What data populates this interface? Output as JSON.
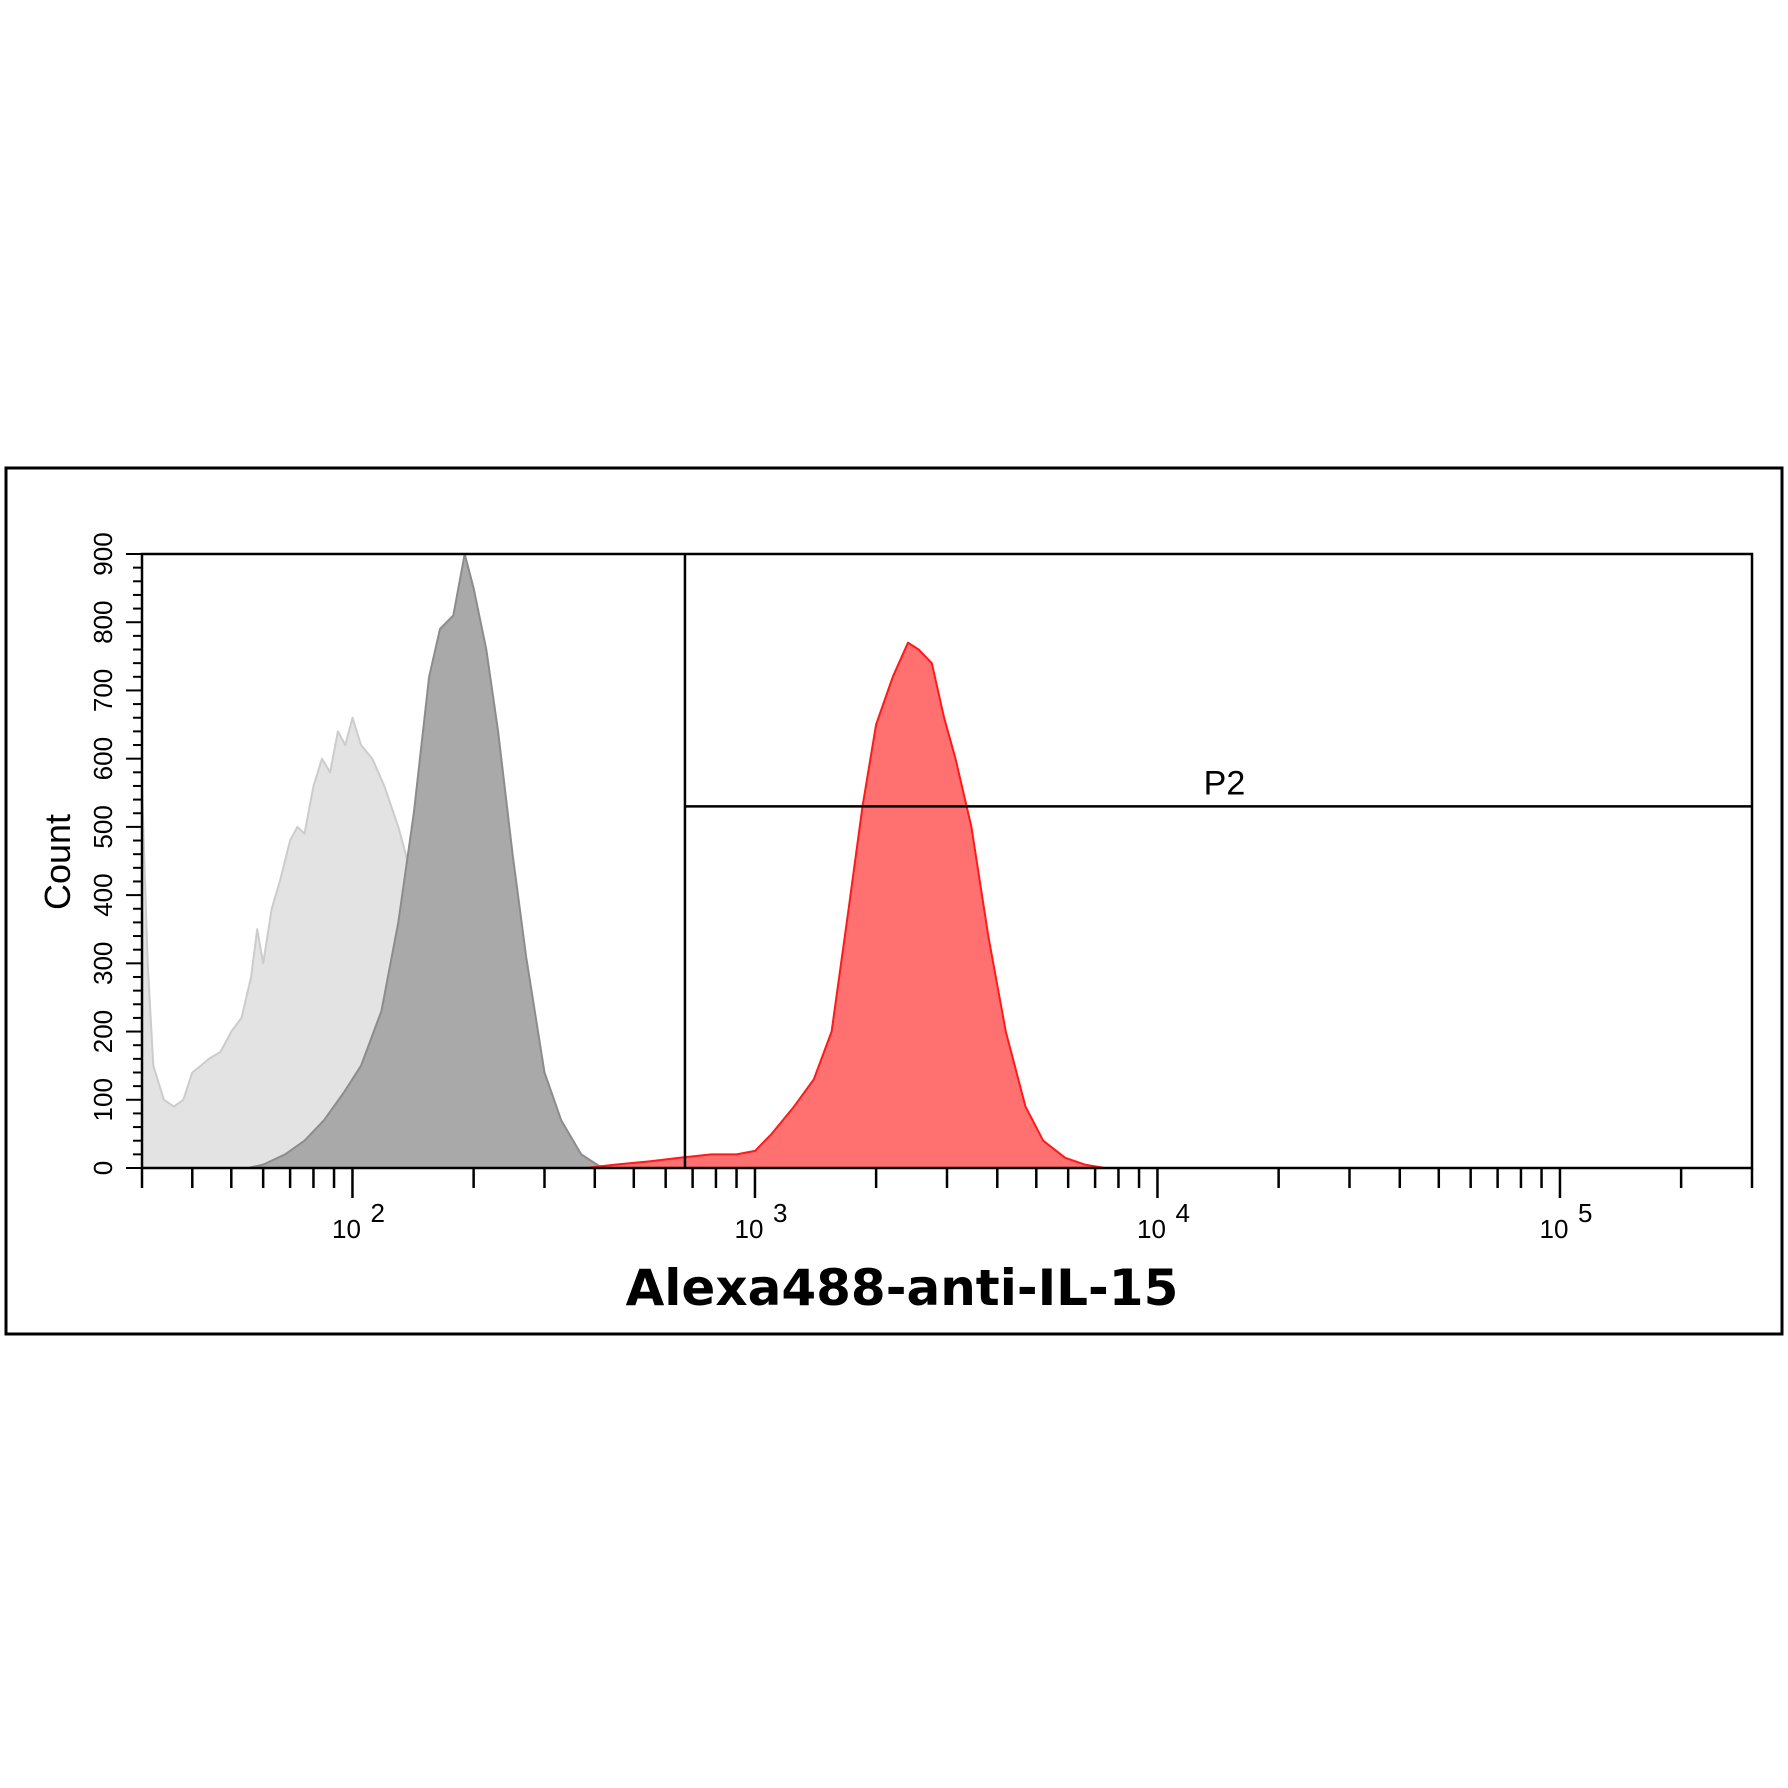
{
  "chart_data": {
    "type": "area",
    "x_scale": "log",
    "xlim": [
      30,
      300000
    ],
    "ylim": [
      0,
      900
    ],
    "xlabel": "Alexa488-anti-IL-15",
    "ylabel": "Count",
    "x_major_ticks": [
      {
        "value": 100,
        "base": "10",
        "exp": "2"
      },
      {
        "value": 1000,
        "base": "10",
        "exp": "3"
      },
      {
        "value": 10000,
        "base": "10",
        "exp": "4"
      },
      {
        "value": 100000,
        "base": "10",
        "exp": "5"
      }
    ],
    "y_ticks": [
      {
        "value": 0,
        "label": "0"
      },
      {
        "value": 100,
        "label": "100"
      },
      {
        "value": 200,
        "label": "200"
      },
      {
        "value": 300,
        "label": "300"
      },
      {
        "value": 400,
        "label": "400"
      },
      {
        "value": 500,
        "label": "500"
      },
      {
        "value": 600,
        "label": "600"
      },
      {
        "value": 700,
        "label": "700"
      },
      {
        "value": 800,
        "label": "800"
      },
      {
        "value": 900,
        "label": "900"
      }
    ],
    "gate": {
      "name": "P2",
      "x_start": 670,
      "x_end": 300000,
      "y": 530
    },
    "series": [
      {
        "color": "#e3e3e3",
        "stroke": "#cccccc",
        "points": [
          [
            30,
            560
          ],
          [
            31,
            300
          ],
          [
            32,
            150
          ],
          [
            34,
            100
          ],
          [
            36,
            90
          ],
          [
            38,
            100
          ],
          [
            40,
            140
          ],
          [
            42,
            150
          ],
          [
            44,
            160
          ],
          [
            47,
            170
          ],
          [
            50,
            200
          ],
          [
            53,
            220
          ],
          [
            56,
            280
          ],
          [
            58,
            350
          ],
          [
            60,
            300
          ],
          [
            63,
            380
          ],
          [
            66,
            420
          ],
          [
            70,
            480
          ],
          [
            73,
            500
          ],
          [
            76,
            490
          ],
          [
            80,
            560
          ],
          [
            84,
            600
          ],
          [
            88,
            580
          ],
          [
            92,
            640
          ],
          [
            96,
            620
          ],
          [
            100,
            660
          ],
          [
            105,
            620
          ],
          [
            112,
            600
          ],
          [
            120,
            560
          ],
          [
            130,
            500
          ],
          [
            140,
            430
          ],
          [
            155,
            330
          ],
          [
            170,
            230
          ],
          [
            190,
            140
          ],
          [
            210,
            80
          ],
          [
            240,
            40
          ],
          [
            270,
            20
          ],
          [
            310,
            8
          ],
          [
            360,
            2
          ],
          [
            420,
            0
          ]
        ]
      },
      {
        "color": "#a9a9a9",
        "stroke": "#8c8c8c",
        "points": [
          [
            55,
            0
          ],
          [
            60,
            5
          ],
          [
            68,
            20
          ],
          [
            76,
            40
          ],
          [
            85,
            70
          ],
          [
            95,
            110
          ],
          [
            105,
            150
          ],
          [
            118,
            230
          ],
          [
            130,
            360
          ],
          [
            142,
            520
          ],
          [
            155,
            720
          ],
          [
            165,
            790
          ],
          [
            178,
            810
          ],
          [
            190,
            900
          ],
          [
            200,
            850
          ],
          [
            215,
            760
          ],
          [
            230,
            640
          ],
          [
            250,
            460
          ],
          [
            270,
            310
          ],
          [
            300,
            140
          ],
          [
            330,
            70
          ],
          [
            370,
            20
          ],
          [
            410,
            3
          ],
          [
            450,
            0
          ]
        ]
      },
      {
        "color": "#ff7070",
        "stroke": "#ff1a1a",
        "points": [
          [
            380,
            0
          ],
          [
            450,
            5
          ],
          [
            550,
            10
          ],
          [
            650,
            15
          ],
          [
            780,
            20
          ],
          [
            900,
            20
          ],
          [
            1000,
            25
          ],
          [
            1100,
            50
          ],
          [
            1250,
            90
          ],
          [
            1400,
            130
          ],
          [
            1550,
            200
          ],
          [
            1700,
            370
          ],
          [
            1850,
            530
          ],
          [
            2000,
            650
          ],
          [
            2200,
            720
          ],
          [
            2400,
            770
          ],
          [
            2550,
            760
          ],
          [
            2750,
            740
          ],
          [
            2950,
            660
          ],
          [
            3150,
            600
          ],
          [
            3450,
            500
          ],
          [
            3800,
            340
          ],
          [
            4200,
            200
          ],
          [
            4700,
            90
          ],
          [
            5200,
            40
          ],
          [
            5900,
            15
          ],
          [
            6600,
            5
          ],
          [
            7400,
            0
          ]
        ]
      }
    ]
  }
}
